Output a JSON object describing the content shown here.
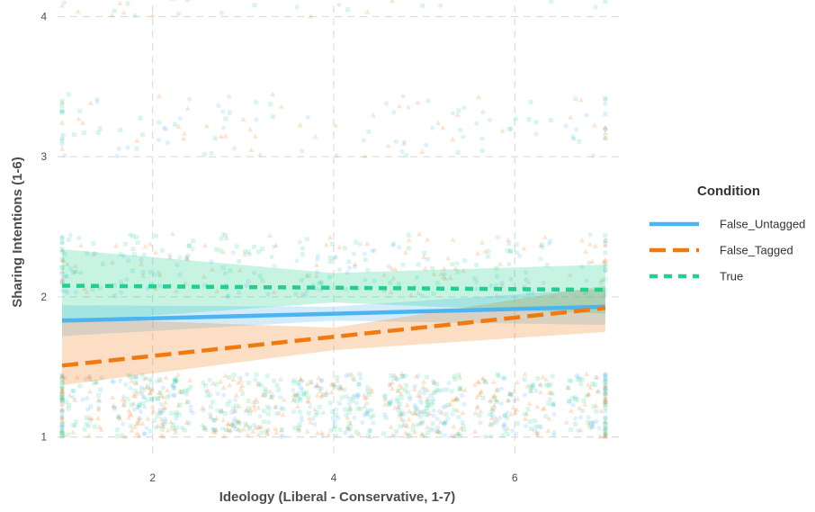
{
  "chart_data": {
    "type": "scatter",
    "title": "",
    "xlabel": "Ideology (Liberal - Conservative, 1-7)",
    "ylabel": "Sharing Intentions (1-6)",
    "xlim": [
      0.95,
      7.15
    ],
    "ylim": [
      0.85,
      4.08
    ],
    "x_ticks": [
      2,
      4,
      6
    ],
    "y_ticks": [
      1,
      2,
      3,
      4
    ],
    "grid": true,
    "legend": {
      "title": "Condition",
      "position": "right"
    },
    "colors": {
      "False_Untagged": "#4db4f2",
      "False_Tagged": "#f07a10",
      "True": "#1fd08f"
    },
    "series": [
      {
        "name": "False_Untagged",
        "line_style": "solid",
        "marker": "circle",
        "fit": {
          "x": [
            1,
            7
          ],
          "y": [
            1.83,
            1.93
          ]
        },
        "ci": {
          "x": [
            1,
            4,
            7
          ],
          "lower": [
            1.72,
            1.83,
            1.8
          ],
          "upper": [
            1.94,
            1.93,
            2.06
          ]
        }
      },
      {
        "name": "False_Tagged",
        "line_style": "longdash",
        "marker": "triangle",
        "fit": {
          "x": [
            1,
            7
          ],
          "y": [
            1.51,
            1.92
          ]
        },
        "ci": {
          "x": [
            1,
            4,
            7
          ],
          "lower": [
            1.37,
            1.62,
            1.75
          ],
          "upper": [
            1.85,
            1.78,
            2.08
          ]
        }
      },
      {
        "name": "True",
        "line_style": "dashed",
        "marker": "square",
        "fit": {
          "x": [
            1,
            7
          ],
          "y": [
            2.08,
            2.05
          ]
        },
        "ci": {
          "x": [
            1,
            4,
            7
          ],
          "lower": [
            1.82,
            1.96,
            1.88
          ],
          "upper": [
            2.34,
            2.17,
            2.23
          ]
        }
      }
    ]
  }
}
